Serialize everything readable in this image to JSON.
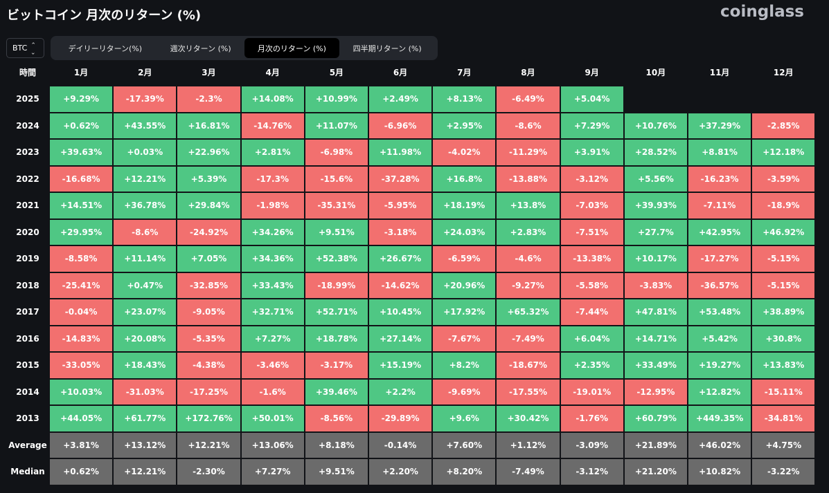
{
  "title": "ビットコイン 月次のリターン (%)",
  "logo": "coinglass",
  "coin_select": {
    "value": "BTC"
  },
  "tabs": [
    {
      "label": "デイリーリターン(%)",
      "active": false
    },
    {
      "label": "週次リターン (%)",
      "active": false
    },
    {
      "label": "月次のリターン (%)",
      "active": true
    },
    {
      "label": "四半期リターン (%)",
      "active": false
    }
  ],
  "colors": {
    "positive": "#4fc784",
    "negative": "#f2706f",
    "summary": "#6b6b6b",
    "background": "#111317"
  },
  "chart_data": {
    "type": "table",
    "corner_label": "時間",
    "columns": [
      "1月",
      "2月",
      "3月",
      "4月",
      "5月",
      "6月",
      "7月",
      "8月",
      "9月",
      "10月",
      "11月",
      "12月"
    ],
    "rows": [
      {
        "label": "2025",
        "values": [
          "+9.29%",
          "-17.39%",
          "-2.3%",
          "+14.08%",
          "+10.99%",
          "+2.49%",
          "+8.13%",
          "-6.49%",
          "+5.04%",
          null,
          null,
          null
        ]
      },
      {
        "label": "2024",
        "values": [
          "+0.62%",
          "+43.55%",
          "+16.81%",
          "-14.76%",
          "+11.07%",
          "-6.96%",
          "+2.95%",
          "-8.6%",
          "+7.29%",
          "+10.76%",
          "+37.29%",
          "-2.85%"
        ]
      },
      {
        "label": "2023",
        "values": [
          "+39.63%",
          "+0.03%",
          "+22.96%",
          "+2.81%",
          "-6.98%",
          "+11.98%",
          "-4.02%",
          "-11.29%",
          "+3.91%",
          "+28.52%",
          "+8.81%",
          "+12.18%"
        ]
      },
      {
        "label": "2022",
        "values": [
          "-16.68%",
          "+12.21%",
          "+5.39%",
          "-17.3%",
          "-15.6%",
          "-37.28%",
          "+16.8%",
          "-13.88%",
          "-3.12%",
          "+5.56%",
          "-16.23%",
          "-3.59%"
        ]
      },
      {
        "label": "2021",
        "values": [
          "+14.51%",
          "+36.78%",
          "+29.84%",
          "-1.98%",
          "-35.31%",
          "-5.95%",
          "+18.19%",
          "+13.8%",
          "-7.03%",
          "+39.93%",
          "-7.11%",
          "-18.9%"
        ]
      },
      {
        "label": "2020",
        "values": [
          "+29.95%",
          "-8.6%",
          "-24.92%",
          "+34.26%",
          "+9.51%",
          "-3.18%",
          "+24.03%",
          "+2.83%",
          "-7.51%",
          "+27.7%",
          "+42.95%",
          "+46.92%"
        ]
      },
      {
        "label": "2019",
        "values": [
          "-8.58%",
          "+11.14%",
          "+7.05%",
          "+34.36%",
          "+52.38%",
          "+26.67%",
          "-6.59%",
          "-4.6%",
          "-13.38%",
          "+10.17%",
          "-17.27%",
          "-5.15%"
        ]
      },
      {
        "label": "2018",
        "values": [
          "-25.41%",
          "+0.47%",
          "-32.85%",
          "+33.43%",
          "-18.99%",
          "-14.62%",
          "+20.96%",
          "-9.27%",
          "-5.58%",
          "-3.83%",
          "-36.57%",
          "-5.15%"
        ]
      },
      {
        "label": "2017",
        "values": [
          "-0.04%",
          "+23.07%",
          "-9.05%",
          "+32.71%",
          "+52.71%",
          "+10.45%",
          "+17.92%",
          "+65.32%",
          "-7.44%",
          "+47.81%",
          "+53.48%",
          "+38.89%"
        ]
      },
      {
        "label": "2016",
        "values": [
          "-14.83%",
          "+20.08%",
          "-5.35%",
          "+7.27%",
          "+18.78%",
          "+27.14%",
          "-7.67%",
          "-7.49%",
          "+6.04%",
          "+14.71%",
          "+5.42%",
          "+30.8%"
        ]
      },
      {
        "label": "2015",
        "values": [
          "-33.05%",
          "+18.43%",
          "-4.38%",
          "-3.46%",
          "-3.17%",
          "+15.19%",
          "+8.2%",
          "-18.67%",
          "+2.35%",
          "+33.49%",
          "+19.27%",
          "+13.83%"
        ]
      },
      {
        "label": "2014",
        "values": [
          "+10.03%",
          "-31.03%",
          "-17.25%",
          "-1.6%",
          "+39.46%",
          "+2.2%",
          "-9.69%",
          "-17.55%",
          "-19.01%",
          "-12.95%",
          "+12.82%",
          "-15.11%"
        ]
      },
      {
        "label": "2013",
        "values": [
          "+44.05%",
          "+61.77%",
          "+172.76%",
          "+50.01%",
          "-8.56%",
          "-29.89%",
          "+9.6%",
          "+30.42%",
          "-1.76%",
          "+60.79%",
          "+449.35%",
          "-34.81%"
        ]
      }
    ],
    "summary_rows": [
      {
        "label": "Average",
        "values": [
          "+3.81%",
          "+13.12%",
          "+12.21%",
          "+13.06%",
          "+8.18%",
          "-0.14%",
          "+7.60%",
          "+1.12%",
          "-3.09%",
          "+21.89%",
          "+46.02%",
          "+4.75%"
        ]
      },
      {
        "label": "Median",
        "values": [
          "+0.62%",
          "+12.21%",
          "-2.30%",
          "+7.27%",
          "+9.51%",
          "+2.20%",
          "+8.20%",
          "-7.49%",
          "-3.12%",
          "+21.20%",
          "+10.82%",
          "-3.22%"
        ]
      }
    ]
  }
}
